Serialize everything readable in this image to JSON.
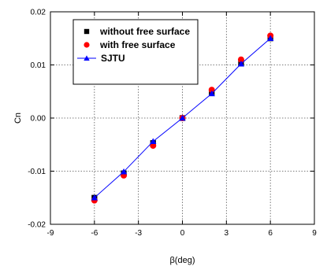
{
  "chart_data": {
    "type": "scatter",
    "xlabel": "β(deg)",
    "ylabel": "Cn",
    "xlim": [
      -9,
      9
    ],
    "ylim": [
      -0.02,
      0.02
    ],
    "x_ticks": [
      -9,
      -6,
      -3,
      0,
      3,
      6,
      9
    ],
    "x_tick_labels": [
      "-9",
      "-6",
      "-3",
      "0",
      "3",
      "6",
      "9"
    ],
    "y_ticks": [
      -0.02,
      -0.01,
      0.0,
      0.01,
      0.02
    ],
    "y_tick_labels": [
      "-0.02",
      "-0.01",
      "0.00",
      "0.01",
      "0.02"
    ],
    "grid": true,
    "grid_style": "dotted",
    "legend_position": "top-left",
    "series": [
      {
        "name": "without free surface",
        "marker": "square",
        "color": "#000000",
        "line": false,
        "x": [
          -6,
          -4,
          -2,
          0,
          2,
          4,
          6
        ],
        "y": [
          -0.015,
          -0.0104,
          -0.0047,
          0.0,
          0.0048,
          0.0103,
          0.015
        ]
      },
      {
        "name": "with free surface",
        "marker": "circle",
        "color": "#ff0000",
        "line": false,
        "x": [
          -6,
          -4,
          -2,
          0,
          2,
          4,
          6
        ],
        "y": [
          -0.0155,
          -0.0108,
          -0.0052,
          0.0,
          0.0053,
          0.011,
          0.0155
        ]
      },
      {
        "name": "SJTU",
        "marker": "triangle",
        "color": "#0000ff",
        "line": true,
        "x": [
          -6,
          -4,
          -2,
          0,
          2,
          4,
          6
        ],
        "y": [
          -0.015,
          -0.0101,
          -0.0044,
          0.0,
          0.0046,
          0.0102,
          0.015
        ]
      }
    ]
  }
}
